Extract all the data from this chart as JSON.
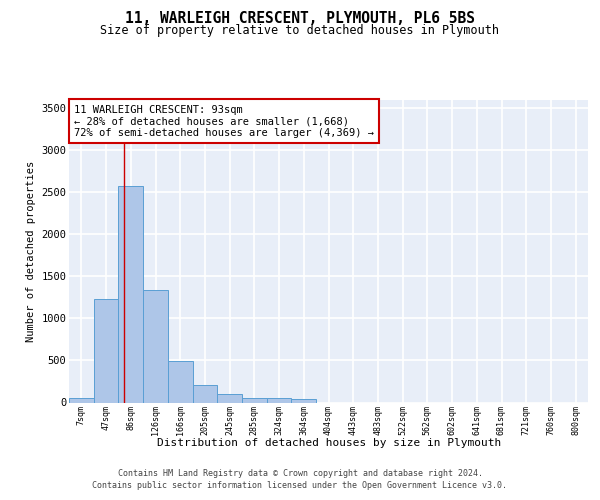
{
  "title1": "11, WARLEIGH CRESCENT, PLYMOUTH, PL6 5BS",
  "title2": "Size of property relative to detached houses in Plymouth",
  "xlabel": "Distribution of detached houses by size in Plymouth",
  "ylabel": "Number of detached properties",
  "bar_color": "#aec6e8",
  "bar_edge_color": "#5a9fd4",
  "background_color": "#e8eef8",
  "grid_color": "#d0d8ec",
  "bin_labels": [
    "7sqm",
    "47sqm",
    "86sqm",
    "126sqm",
    "166sqm",
    "205sqm",
    "245sqm",
    "285sqm",
    "324sqm",
    "364sqm",
    "404sqm",
    "443sqm",
    "483sqm",
    "522sqm",
    "562sqm",
    "602sqm",
    "641sqm",
    "681sqm",
    "721sqm",
    "760sqm",
    "800sqm"
  ],
  "bar_values": [
    55,
    1230,
    2580,
    1340,
    495,
    210,
    100,
    55,
    55,
    40,
    0,
    0,
    0,
    0,
    0,
    0,
    0,
    0,
    0,
    0,
    0
  ],
  "ylim": [
    0,
    3600
  ],
  "yticks": [
    0,
    500,
    1000,
    1500,
    2000,
    2500,
    3000,
    3500
  ],
  "property_line_x": 1.73,
  "annotation_text_line1": "11 WARLEIGH CRESCENT: 93sqm",
  "annotation_text_line2": "← 28% of detached houses are smaller (1,668)",
  "annotation_text_line3": "72% of semi-detached houses are larger (4,369) →",
  "annotation_box_edgecolor": "#cc0000",
  "footer1": "Contains HM Land Registry data © Crown copyright and database right 2024.",
  "footer2": "Contains public sector information licensed under the Open Government Licence v3.0."
}
